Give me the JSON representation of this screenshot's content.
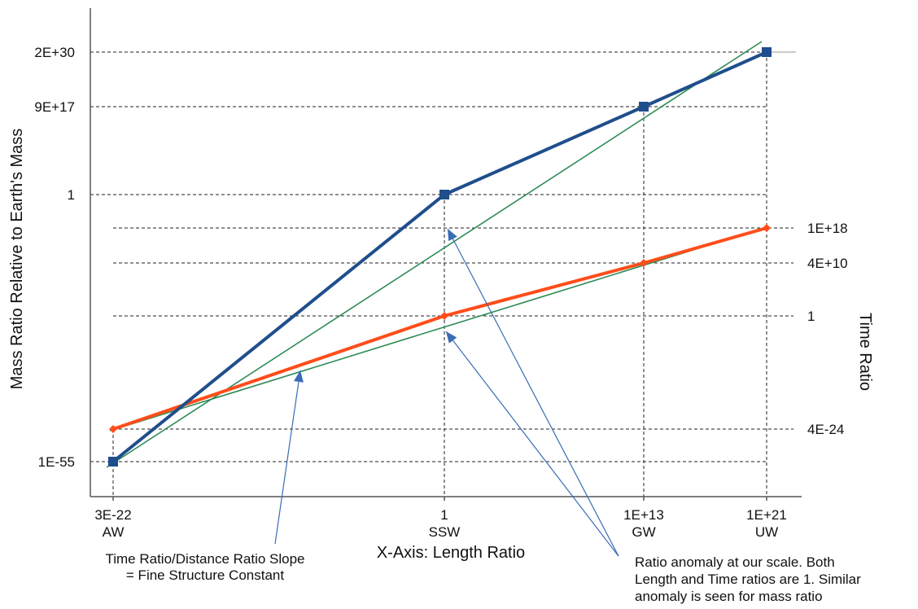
{
  "chart_data": {
    "type": "line",
    "xlabel": "X-Axis: Length Ratio",
    "ylabel": "Mass Ratio Relative to Earth's Mass",
    "y2label": "Time Ratio",
    "x_ticks": [
      {
        "value": "3E-22",
        "name": "AW"
      },
      {
        "value": "1",
        "name": "SSW"
      },
      {
        "value": "1E+13",
        "name": "GW"
      },
      {
        "value": "1E+21",
        "name": "UW"
      }
    ],
    "y_ticks": [
      "1E-55",
      "1",
      "9E+17",
      "2E+30"
    ],
    "y2_ticks": [
      "4E-24",
      "1",
      "4E+10",
      "1E+18"
    ],
    "series": [
      {
        "axis": "left",
        "color": "#1f4e8c",
        "marker": "square",
        "x": [
          "3E-22",
          "1",
          "1E+13",
          "1E+21"
        ],
        "y": [
          "1E-55",
          "1",
          "9E+17",
          "2E+30"
        ]
      },
      {
        "axis": "right",
        "color": "#ff4d1a",
        "marker": "diamond",
        "x": [
          "3E-22",
          "1",
          "1E+13",
          "1E+21"
        ],
        "y": [
          "4E-24",
          "1",
          "4E+10",
          "1E+18"
        ]
      }
    ],
    "trendlines_color": "#2e8b57",
    "annotations": [
      {
        "lines": [
          "Time Ratio/Distance Ratio Slope",
          "= Fine Structure Constant"
        ]
      },
      {
        "lines": [
          "Ratio anomaly at our scale.  Both",
          "Length and Time ratios are 1.  Similar",
          "anomaly is seen for mass ratio"
        ]
      }
    ]
  }
}
